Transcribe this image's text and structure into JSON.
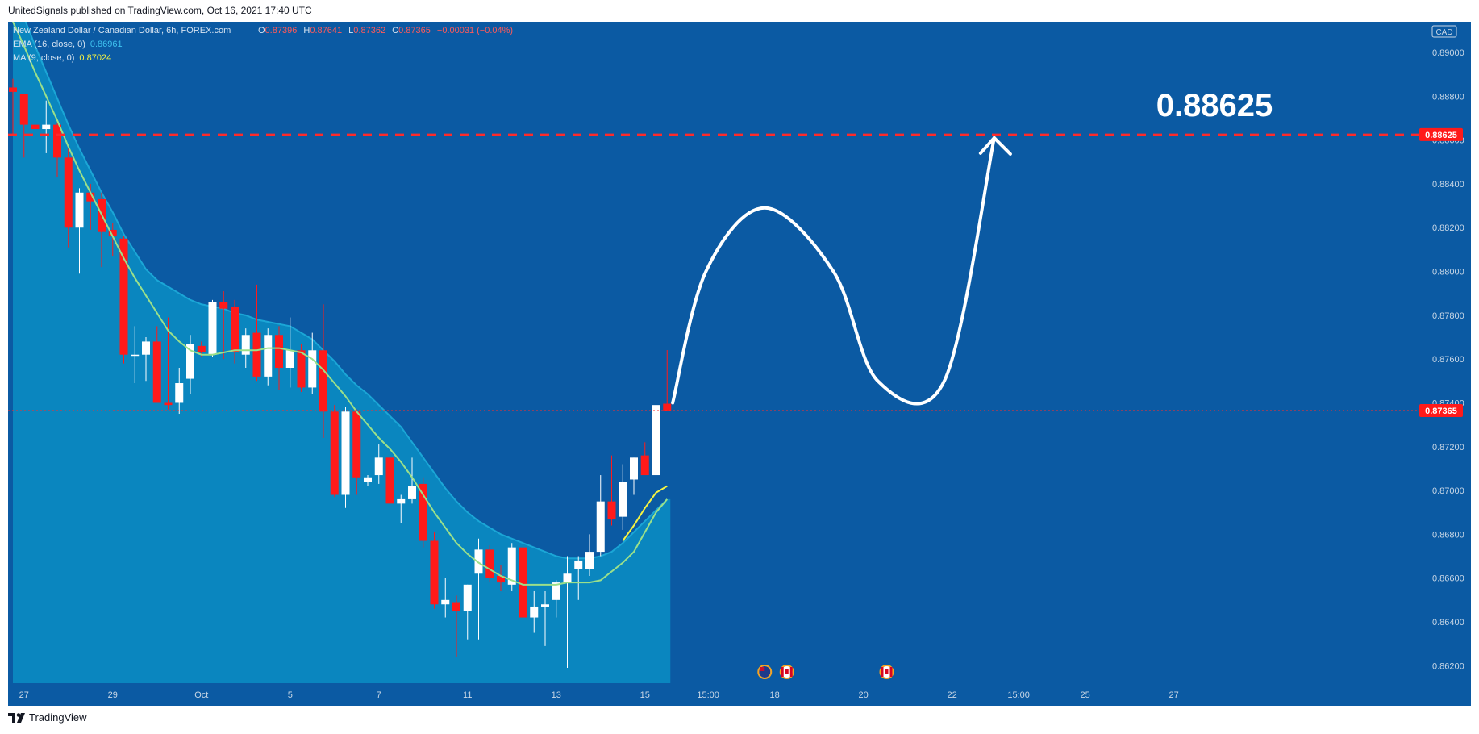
{
  "header": {
    "publish_text": "UnitedSignals published on TradingView.com, Oct 16, 2021 17:40 UTC"
  },
  "legend": {
    "symbol": "New Zealand Dollar / Canadian Dollar, 6h, FOREX.com",
    "ohlc": [
      {
        "label": "O",
        "value": "0.87396"
      },
      {
        "label": "H",
        "value": "0.87641"
      },
      {
        "label": "L",
        "value": "0.87362"
      },
      {
        "label": "C",
        "value": "0.87365"
      }
    ],
    "change": "−0.00031 (−0.04%)",
    "ema_label": "EMA (16, close, 0)",
    "ema_value": "0.86961",
    "ma_label": "MA (9, close, 0)",
    "ma_value": "0.87024"
  },
  "footer": {
    "brand": "TradingView"
  },
  "colors": {
    "background": "#0b5aa3",
    "band_fill": "#0a86bf",
    "band_edge": "#1ba6d6",
    "ema_line": "#9be08a",
    "ma_line": "#f5f242",
    "bull": "#ffffff",
    "bear": "#ff1a1a",
    "target_line": "#ff2a2a",
    "price_badge": "#ff1a1a"
  },
  "chart_data": {
    "type": "candlestick",
    "ylim": [
      0.8612,
      0.8914
    ],
    "y_ticks": [
      0.89,
      0.888,
      0.886,
      0.884,
      0.882,
      0.88,
      0.878,
      0.876,
      0.874,
      0.872,
      0.87,
      0.868,
      0.866,
      0.864,
      0.862
    ],
    "y_tick_labels": [
      "0.89000",
      "0.88800",
      "0.88600",
      "0.88400",
      "0.88200",
      "0.88000",
      "0.87800",
      "0.87600",
      "0.87400",
      "0.87200",
      "0.87000",
      "0.86800",
      "0.86600",
      "0.86400",
      "0.86200"
    ],
    "currency_label": "CAD",
    "x_ticks": [
      {
        "label": "27",
        "bar": 1
      },
      {
        "label": "29",
        "bar": 9
      },
      {
        "label": "Oct",
        "bar": 17
      },
      {
        "label": "5",
        "bar": 25
      },
      {
        "label": "7",
        "bar": 33
      },
      {
        "label": "11",
        "bar": 41
      },
      {
        "label": "13",
        "bar": 49
      },
      {
        "label": "15",
        "bar": 57
      },
      {
        "label": "15:00",
        "bar": 62.7
      },
      {
        "label": "18",
        "bar": 68.7
      },
      {
        "label": "20",
        "bar": 76.7
      },
      {
        "label": "22",
        "bar": 84.7
      },
      {
        "label": "15:00",
        "bar": 90.7
      },
      {
        "label": "25",
        "bar": 96.7
      },
      {
        "label": "27",
        "bar": 104.7
      }
    ],
    "candles": [
      {
        "o": 0.8884,
        "h": 0.8888,
        "l": 0.8862,
        "c": 0.8882
      },
      {
        "o": 0.8881,
        "h": 0.8881,
        "l": 0.8852,
        "c": 0.8867
      },
      {
        "o": 0.8867,
        "h": 0.8874,
        "l": 0.8862,
        "c": 0.8865
      },
      {
        "o": 0.8865,
        "h": 0.8878,
        "l": 0.8854,
        "c": 0.8867
      },
      {
        "o": 0.8867,
        "h": 0.8868,
        "l": 0.8843,
        "c": 0.8852
      },
      {
        "o": 0.8852,
        "h": 0.8856,
        "l": 0.8811,
        "c": 0.882
      },
      {
        "o": 0.882,
        "h": 0.8838,
        "l": 0.8799,
        "c": 0.8836
      },
      {
        "o": 0.8836,
        "h": 0.884,
        "l": 0.8819,
        "c": 0.8832
      },
      {
        "o": 0.8833,
        "h": 0.8836,
        "l": 0.8802,
        "c": 0.8818
      },
      {
        "o": 0.8819,
        "h": 0.8822,
        "l": 0.8807,
        "c": 0.8816
      },
      {
        "o": 0.8815,
        "h": 0.8816,
        "l": 0.8758,
        "c": 0.8762
      },
      {
        "o": 0.8762,
        "h": 0.8775,
        "l": 0.8749,
        "c": 0.8762
      },
      {
        "o": 0.8762,
        "h": 0.877,
        "l": 0.875,
        "c": 0.8768
      },
      {
        "o": 0.8768,
        "h": 0.8775,
        "l": 0.874,
        "c": 0.874
      },
      {
        "o": 0.874,
        "h": 0.8779,
        "l": 0.8737,
        "c": 0.8739
      },
      {
        "o": 0.874,
        "h": 0.8756,
        "l": 0.8735,
        "c": 0.8749
      },
      {
        "o": 0.8751,
        "h": 0.8771,
        "l": 0.8744,
        "c": 0.8767
      },
      {
        "o": 0.8766,
        "h": 0.8768,
        "l": 0.8761,
        "c": 0.8763
      },
      {
        "o": 0.8762,
        "h": 0.8787,
        "l": 0.8761,
        "c": 0.8786
      },
      {
        "o": 0.8786,
        "h": 0.8791,
        "l": 0.876,
        "c": 0.8783
      },
      {
        "o": 0.8784,
        "h": 0.8787,
        "l": 0.8758,
        "c": 0.8763
      },
      {
        "o": 0.8762,
        "h": 0.8774,
        "l": 0.8756,
        "c": 0.8771
      },
      {
        "o": 0.8772,
        "h": 0.8794,
        "l": 0.875,
        "c": 0.8752
      },
      {
        "o": 0.8752,
        "h": 0.8774,
        "l": 0.8748,
        "c": 0.8771
      },
      {
        "o": 0.8771,
        "h": 0.8775,
        "l": 0.8746,
        "c": 0.8756
      },
      {
        "o": 0.8756,
        "h": 0.8779,
        "l": 0.8747,
        "c": 0.8764
      },
      {
        "o": 0.8764,
        "h": 0.8767,
        "l": 0.8745,
        "c": 0.8747
      },
      {
        "o": 0.8747,
        "h": 0.8772,
        "l": 0.8744,
        "c": 0.8764
      },
      {
        "o": 0.8764,
        "h": 0.8785,
        "l": 0.8724,
        "c": 0.8736
      },
      {
        "o": 0.8736,
        "h": 0.8739,
        "l": 0.8697,
        "c": 0.8698
      },
      {
        "o": 0.8698,
        "h": 0.8738,
        "l": 0.8692,
        "c": 0.8736
      },
      {
        "o": 0.8736,
        "h": 0.8737,
        "l": 0.8698,
        "c": 0.8706
      },
      {
        "o": 0.8704,
        "h": 0.8707,
        "l": 0.8702,
        "c": 0.8706
      },
      {
        "o": 0.8707,
        "h": 0.8721,
        "l": 0.8703,
        "c": 0.8715
      },
      {
        "o": 0.8715,
        "h": 0.8727,
        "l": 0.8692,
        "c": 0.8694
      },
      {
        "o": 0.8694,
        "h": 0.8698,
        "l": 0.8685,
        "c": 0.8696
      },
      {
        "o": 0.8696,
        "h": 0.8715,
        "l": 0.8694,
        "c": 0.8702
      },
      {
        "o": 0.8703,
        "h": 0.8706,
        "l": 0.8674,
        "c": 0.8677
      },
      {
        "o": 0.8677,
        "h": 0.8681,
        "l": 0.8646,
        "c": 0.8648
      },
      {
        "o": 0.8648,
        "h": 0.866,
        "l": 0.8642,
        "c": 0.865
      },
      {
        "o": 0.8649,
        "h": 0.8652,
        "l": 0.8624,
        "c": 0.8645
      },
      {
        "o": 0.8645,
        "h": 0.8657,
        "l": 0.8632,
        "c": 0.8657
      },
      {
        "o": 0.8662,
        "h": 0.8678,
        "l": 0.8632,
        "c": 0.8673
      },
      {
        "o": 0.8673,
        "h": 0.8675,
        "l": 0.8658,
        "c": 0.866
      },
      {
        "o": 0.8661,
        "h": 0.8666,
        "l": 0.8654,
        "c": 0.8658
      },
      {
        "o": 0.8657,
        "h": 0.8676,
        "l": 0.8654,
        "c": 0.8674
      },
      {
        "o": 0.8674,
        "h": 0.8682,
        "l": 0.8636,
        "c": 0.8642
      },
      {
        "o": 0.8642,
        "h": 0.8654,
        "l": 0.8635,
        "c": 0.8647
      },
      {
        "o": 0.8647,
        "h": 0.8654,
        "l": 0.8629,
        "c": 0.8648
      },
      {
        "o": 0.865,
        "h": 0.8659,
        "l": 0.8642,
        "c": 0.8658
      },
      {
        "o": 0.8658,
        "h": 0.867,
        "l": 0.8619,
        "c": 0.8662
      },
      {
        "o": 0.8664,
        "h": 0.867,
        "l": 0.865,
        "c": 0.8668
      },
      {
        "o": 0.8664,
        "h": 0.868,
        "l": 0.8661,
        "c": 0.8672
      },
      {
        "o": 0.8672,
        "h": 0.8707,
        "l": 0.867,
        "c": 0.8695
      },
      {
        "o": 0.8695,
        "h": 0.8716,
        "l": 0.8684,
        "c": 0.8687
      },
      {
        "o": 0.8688,
        "h": 0.8712,
        "l": 0.8682,
        "c": 0.8704
      },
      {
        "o": 0.8705,
        "h": 0.8715,
        "l": 0.8698,
        "c": 0.8715
      },
      {
        "o": 0.8716,
        "h": 0.8722,
        "l": 0.8709,
        "c": 0.8707
      },
      {
        "o": 0.8707,
        "h": 0.8745,
        "l": 0.87,
        "c": 0.8739
      },
      {
        "o": 0.87396,
        "h": 0.87641,
        "l": 0.87362,
        "c": 0.87365
      }
    ],
    "ema_band_upper": [
      0.8928,
      0.8916,
      0.8903,
      0.8891,
      0.8879,
      0.8867,
      0.8856,
      0.8846,
      0.8836,
      0.8827,
      0.8817,
      0.8809,
      0.8801,
      0.8796,
      0.8793,
      0.879,
      0.8787,
      0.8785,
      0.8784,
      0.8783,
      0.8781,
      0.878,
      0.8778,
      0.8777,
      0.8776,
      0.8775,
      0.8772,
      0.8769,
      0.8764,
      0.8759,
      0.8753,
      0.8748,
      0.8744,
      0.8739,
      0.8734,
      0.8729,
      0.8722,
      0.8715,
      0.8708,
      0.8701,
      0.8695,
      0.869,
      0.8686,
      0.8683,
      0.868,
      0.8678,
      0.8676,
      0.8674,
      0.8672,
      0.867,
      0.8669,
      0.8669,
      0.8669,
      0.867,
      0.8672,
      0.8676,
      0.8681,
      0.8686,
      0.8691,
      0.8696
    ],
    "ema": [
      0.8914,
      0.8903,
      0.8891,
      0.888,
      0.8869,
      0.8857,
      0.8846,
      0.8836,
      0.8826,
      0.8816,
      0.8806,
      0.8797,
      0.8789,
      0.8781,
      0.8773,
      0.8768,
      0.8764,
      0.8762,
      0.8762,
      0.8763,
      0.8764,
      0.8764,
      0.8764,
      0.8765,
      0.8765,
      0.8764,
      0.8763,
      0.876,
      0.8755,
      0.8749,
      0.8743,
      0.8736,
      0.873,
      0.8724,
      0.8719,
      0.8713,
      0.8706,
      0.8698,
      0.869,
      0.8683,
      0.8676,
      0.8671,
      0.8667,
      0.8664,
      0.8661,
      0.8659,
      0.8657,
      0.8657,
      0.8657,
      0.8657,
      0.8658,
      0.8658,
      0.8658,
      0.8659,
      0.8663,
      0.8667,
      0.8672,
      0.8681,
      0.869,
      0.8696
    ],
    "ma": [
      null,
      null,
      null,
      null,
      null,
      null,
      null,
      null,
      null,
      null,
      null,
      null,
      null,
      null,
      null,
      null,
      null,
      null,
      null,
      null,
      null,
      null,
      null,
      null,
      null,
      null,
      null,
      null,
      null,
      null,
      null,
      null,
      null,
      null,
      null,
      null,
      null,
      null,
      null,
      null,
      null,
      null,
      null,
      null,
      null,
      null,
      null,
      null,
      null,
      null,
      null,
      null,
      null,
      null,
      null,
      0.8677,
      0.8684,
      0.8692,
      0.8699,
      0.8702
    ],
    "last_price": 0.87365,
    "last_price_label": "0.87365",
    "target_price": 0.88625,
    "target_label": "0.88625",
    "target_badge_label": "0.88625",
    "projection_path": [
      {
        "bar": 59.5,
        "y": 0.874
      },
      {
        "bar": 62.5,
        "y": 0.88
      },
      {
        "bar": 67.8,
        "y": 0.8829
      },
      {
        "bar": 74.0,
        "y": 0.88
      },
      {
        "bar": 78.0,
        "y": 0.875
      },
      {
        "bar": 84.0,
        "y": 0.875
      },
      {
        "bar": 88.5,
        "y": 0.8861
      }
    ],
    "event_flags": [
      {
        "bar": 67.8,
        "name": "nz-flag-icon"
      },
      {
        "bar": 69.8,
        "name": "ca-flag-icon"
      },
      {
        "bar": 78.8,
        "name": "ca-flag-icon"
      }
    ]
  }
}
